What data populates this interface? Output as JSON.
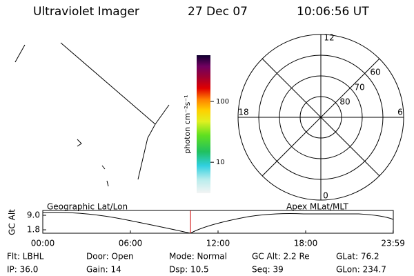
{
  "header": {
    "title": "Ultraviolet Imager",
    "date": "27 Dec 07",
    "time": "10:06:56 UT"
  },
  "colorbar": {
    "label": "photon cm⁻²s⁻¹",
    "scale": "log",
    "lim": [
      3.1,
      575
    ],
    "ticks": [
      100,
      10
    ]
  },
  "dial": {
    "labels": {
      "top": "12",
      "left": "18",
      "right": "6",
      "bottom": "0"
    },
    "rings": [
      "80",
      "70",
      "60"
    ]
  },
  "altitude": {
    "ylabel": "GC Alt",
    "left_title": "Geographic Lat/Lon",
    "right_title": "Apex MLat/MLT",
    "ylim": [
      0.1,
      11.4
    ],
    "yticks": [
      {
        "value": 9,
        "label": "9.0"
      },
      {
        "value": 1.8,
        "label": "1.8"
      }
    ],
    "xlim": [
      0,
      24
    ],
    "xticks": [
      {
        "value": 0,
        "label": "00:00"
      },
      {
        "value": 6,
        "label": "06:00"
      },
      {
        "value": 12,
        "label": "12:00"
      },
      {
        "value": 18,
        "label": "18:00"
      },
      {
        "value": 23.983,
        "label": "23:59"
      }
    ]
  },
  "info": [
    [
      "Flt: LBHL",
      "Door: Open",
      "Mode: Normal",
      "GC Alt: 2.2 Re",
      "GLat: 76.2"
    ],
    [
      "IP: 36.0",
      "Gain: 14",
      "Dsp: 10.5",
      "Seq: 39",
      "GLon: 234.7"
    ]
  ]
}
